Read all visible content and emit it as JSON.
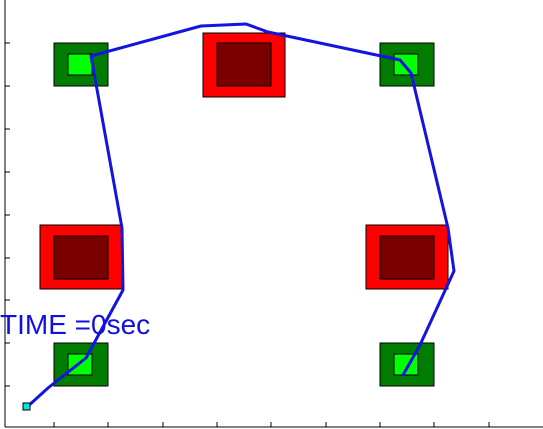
{
  "hud": {
    "time_text": "TIME =0sec"
  },
  "colors": {
    "background": "#ffffff",
    "frame": "#000000",
    "path": "#1414e0",
    "goal_outer": "#007c00",
    "goal_inner": "#00ff00",
    "obstacle_outer": "#ff0000",
    "obstacle_inner": "#7a0000",
    "agent": "#00e5e5"
  },
  "scene": {
    "goals": [
      "goal-top-left",
      "goal-top-right",
      "goal-bottom-left",
      "goal-bottom-right"
    ],
    "obstacles": [
      "obstacle-top-center",
      "obstacle-middle-left",
      "obstacle-middle-right"
    ],
    "agent": "agent-marker",
    "trajectory": "planned-path"
  }
}
